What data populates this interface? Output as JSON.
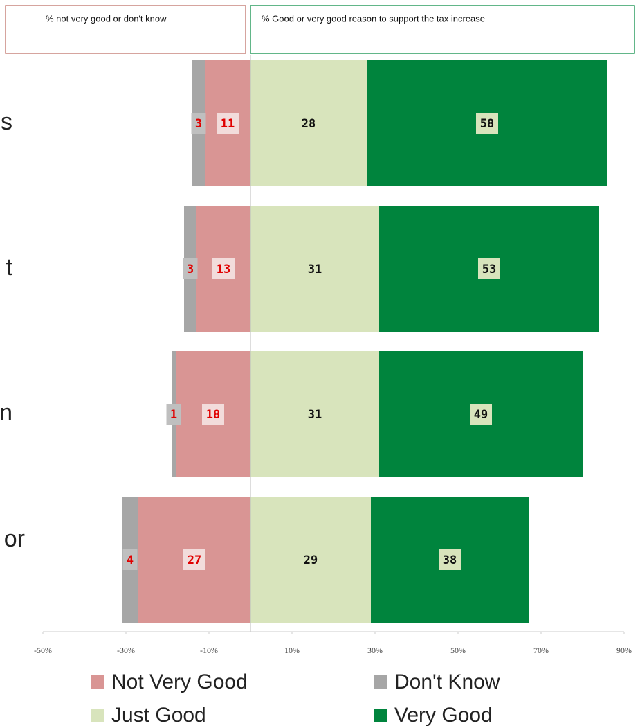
{
  "chart_data": {
    "type": "diverging-bar",
    "annotations": [
      "% not very good or don't know",
      "% Good or very good reason to support the tax increase"
    ],
    "categories": [
      "s",
      "t",
      "n",
      "or"
    ],
    "series": [
      {
        "name": "Just Good",
        "color": "#d8e4bc",
        "values": [
          28,
          31,
          31,
          29
        ]
      },
      {
        "name": "Very Good",
        "color": "#00843d",
        "values": [
          58,
          53,
          49,
          38
        ]
      },
      {
        "name": "Not Very Good",
        "color": "#d99594",
        "values": [
          -11,
          -13,
          -18,
          -27
        ],
        "value_labels": [
          "11",
          "13",
          "18",
          "27"
        ]
      },
      {
        "name": "Don't Know",
        "color": "#a6a6a6",
        "values": [
          -3,
          -3,
          -1,
          -4
        ],
        "value_labels": [
          "3",
          "3",
          "1",
          "4"
        ]
      }
    ],
    "xlim": [
      -50,
      90
    ],
    "xticks": [
      {
        "value": -50,
        "label": "-50%"
      },
      {
        "value": -30,
        "label": "-30%"
      },
      {
        "value": -10,
        "label": "-10%"
      },
      {
        "value": 10,
        "label": "10%"
      },
      {
        "value": 30,
        "label": "30%"
      },
      {
        "value": 50,
        "label": "50%"
      },
      {
        "value": 70,
        "label": "70%"
      },
      {
        "value": 90,
        "label": "90%"
      }
    ]
  }
}
